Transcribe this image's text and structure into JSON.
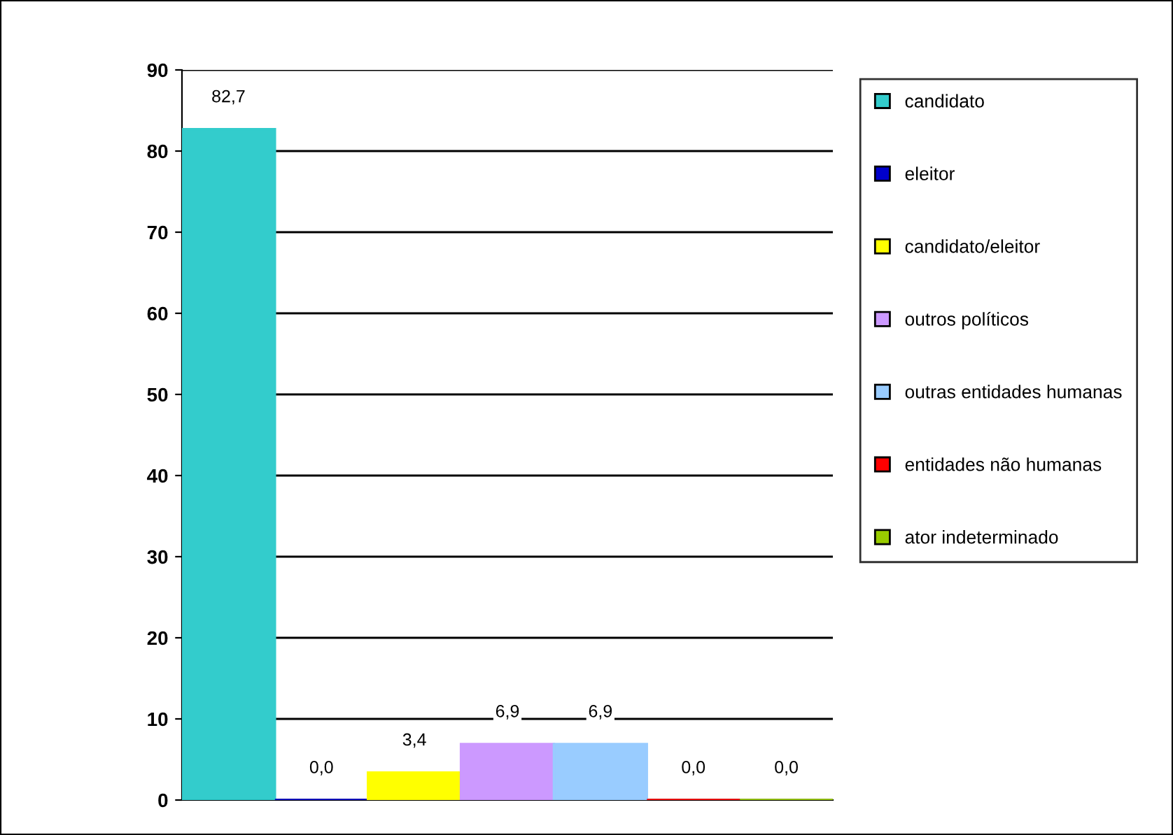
{
  "chart_data": {
    "type": "bar",
    "categories": [
      null
    ],
    "ylim": [
      0,
      90
    ],
    "yticks": [
      0,
      10,
      20,
      30,
      40,
      50,
      60,
      70,
      80,
      90
    ],
    "grid": "y",
    "legend": "right",
    "series": [
      {
        "name": "candidato",
        "color": "#33cccc",
        "values": [
          82.7
        ],
        "value_labels": [
          "82,7"
        ]
      },
      {
        "name": "eleitor",
        "color": "#0000cc",
        "values": [
          0.0
        ],
        "value_labels": [
          "0,0"
        ]
      },
      {
        "name": "candidato/eleitor",
        "color": "#ffff00",
        "values": [
          3.4
        ],
        "value_labels": [
          "3,4"
        ]
      },
      {
        "name": "outros políticos",
        "color": "#cc99ff",
        "values": [
          6.9
        ],
        "value_labels": [
          "6,9"
        ]
      },
      {
        "name": "outras entidades humanas",
        "color": "#99ccff",
        "values": [
          6.9
        ],
        "value_labels": [
          "6,9"
        ]
      },
      {
        "name": "entidades não humanas",
        "color": "#ff0000",
        "values": [
          0.0
        ],
        "value_labels": [
          "0,0"
        ]
      },
      {
        "name": "ator indeterminado",
        "color": "#99cc00",
        "values": [
          0.0
        ],
        "value_labels": [
          "0,0"
        ]
      }
    ]
  }
}
